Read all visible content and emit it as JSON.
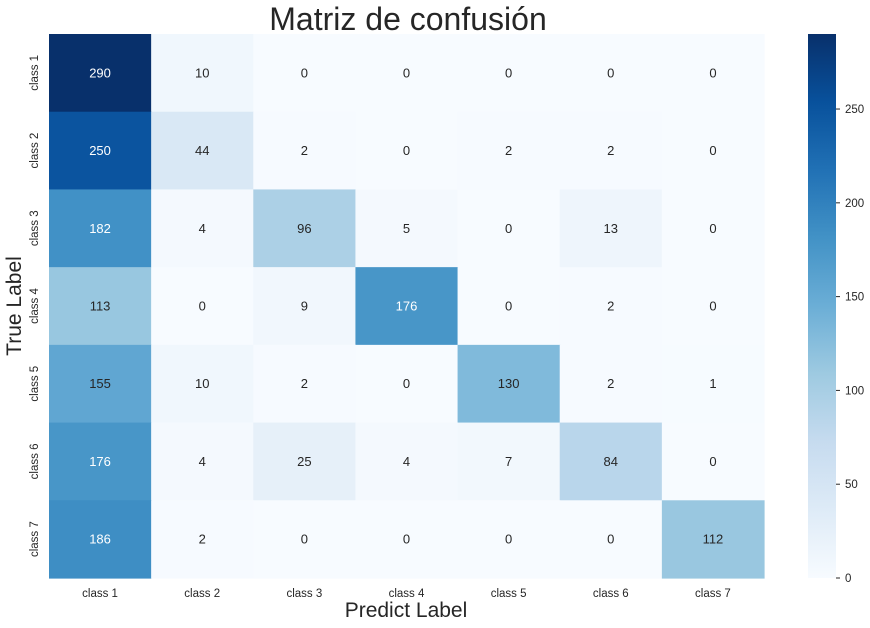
{
  "chart_data": {
    "type": "heatmap",
    "title": "Matriz de confusión",
    "xlabel": "Predict Label",
    "ylabel": "True Label",
    "x_categories": [
      "class 1",
      "class 2",
      "class 3",
      "class 4",
      "class 5",
      "class 6",
      "class 7"
    ],
    "y_categories": [
      "class 1",
      "class 2",
      "class 3",
      "class 4",
      "class 5",
      "class 6",
      "class 7"
    ],
    "values": [
      [
        290,
        10,
        0,
        0,
        0,
        0,
        0
      ],
      [
        250,
        44,
        2,
        0,
        2,
        2,
        0
      ],
      [
        182,
        4,
        96,
        5,
        0,
        13,
        0
      ],
      [
        113,
        0,
        9,
        176,
        0,
        2,
        0
      ],
      [
        155,
        10,
        2,
        0,
        130,
        2,
        1
      ],
      [
        176,
        4,
        25,
        4,
        7,
        84,
        0
      ],
      [
        186,
        2,
        0,
        0,
        0,
        0,
        112
      ]
    ],
    "colormap": "Blues",
    "vmin": 0,
    "vmax": 290,
    "colorbar_ticks": [
      0,
      50,
      100,
      150,
      200,
      250
    ],
    "annotate": true
  }
}
